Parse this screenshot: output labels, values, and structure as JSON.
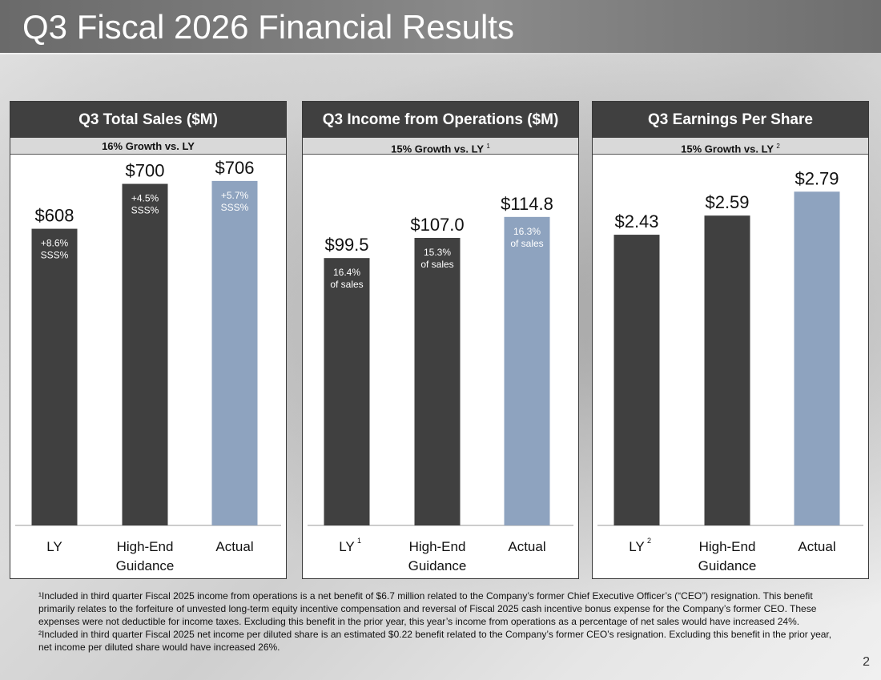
{
  "title": "Q3 Fiscal 2026 Financial Results",
  "page_number": "2",
  "colors": {
    "dark_bar": "#404040",
    "actual_bar": "#8ea3bf"
  },
  "chart_data": [
    {
      "type": "bar",
      "title": "Q3 Total Sales ($M)",
      "subtitle": "16% Growth vs. LY",
      "subtitle_note": "",
      "categories": [
        "LY",
        "High-End Guidance",
        "Actual"
      ],
      "category_notes": [
        "",
        "",
        ""
      ],
      "values": [
        608,
        700,
        706
      ],
      "value_labels": [
        "$608",
        "$700",
        "$706"
      ],
      "inner_labels": [
        [
          "+8.6%",
          "SSS%"
        ],
        [
          "+4.5%",
          "SSS%"
        ],
        [
          "+5.7%",
          "SSS%"
        ]
      ],
      "ylim": [
        0,
        760
      ]
    },
    {
      "type": "bar",
      "title": "Q3 Income from Operations ($M)",
      "subtitle": "15% Growth vs. LY",
      "subtitle_note": "1",
      "categories": [
        "LY",
        "High-End Guidance",
        "Actual"
      ],
      "category_notes": [
        "1",
        "",
        ""
      ],
      "values": [
        99.5,
        107.0,
        114.8
      ],
      "value_labels": [
        "$99.5",
        "$107.0",
        "$114.8"
      ],
      "inner_labels": [
        [
          "16.4%",
          "of sales"
        ],
        [
          "15.3%",
          "of sales"
        ],
        [
          "16.3%",
          "of sales"
        ]
      ],
      "ylim": [
        0,
        138
      ]
    },
    {
      "type": "bar",
      "title": "Q3 Earnings Per Share",
      "subtitle": "15% Growth vs. LY",
      "subtitle_note": "2",
      "categories": [
        "LY",
        "High-End Guidance",
        "Actual"
      ],
      "category_notes": [
        "2",
        "",
        ""
      ],
      "values": [
        2.43,
        2.59,
        2.79
      ],
      "value_labels": [
        "$2.43",
        "$2.59",
        "$2.79"
      ],
      "inner_labels": [
        [],
        [],
        []
      ],
      "ylim": [
        0,
        3.1
      ]
    }
  ],
  "footnotes": [
    "¹Included in third quarter Fiscal 2025 income from operations is a net benefit of $6.7 million related to the Company’s former Chief Executive Officer’s (“CEO”) resignation. This benefit primarily relates to the forfeiture of unvested long-term equity incentive compensation and reversal of Fiscal 2025 cash incentive bonus expense for the Company’s former CEO. These expenses were not deductible for income taxes. Excluding this benefit in the prior year, this year’s income from operations as a percentage of net sales would have increased 24%.",
    "²Included in third quarter Fiscal 2025 net income per diluted share is an estimated $0.22 benefit related to the Company’s former CEO’s resignation. Excluding this benefit in the prior year, net income per diluted share would have increased 26%."
  ]
}
